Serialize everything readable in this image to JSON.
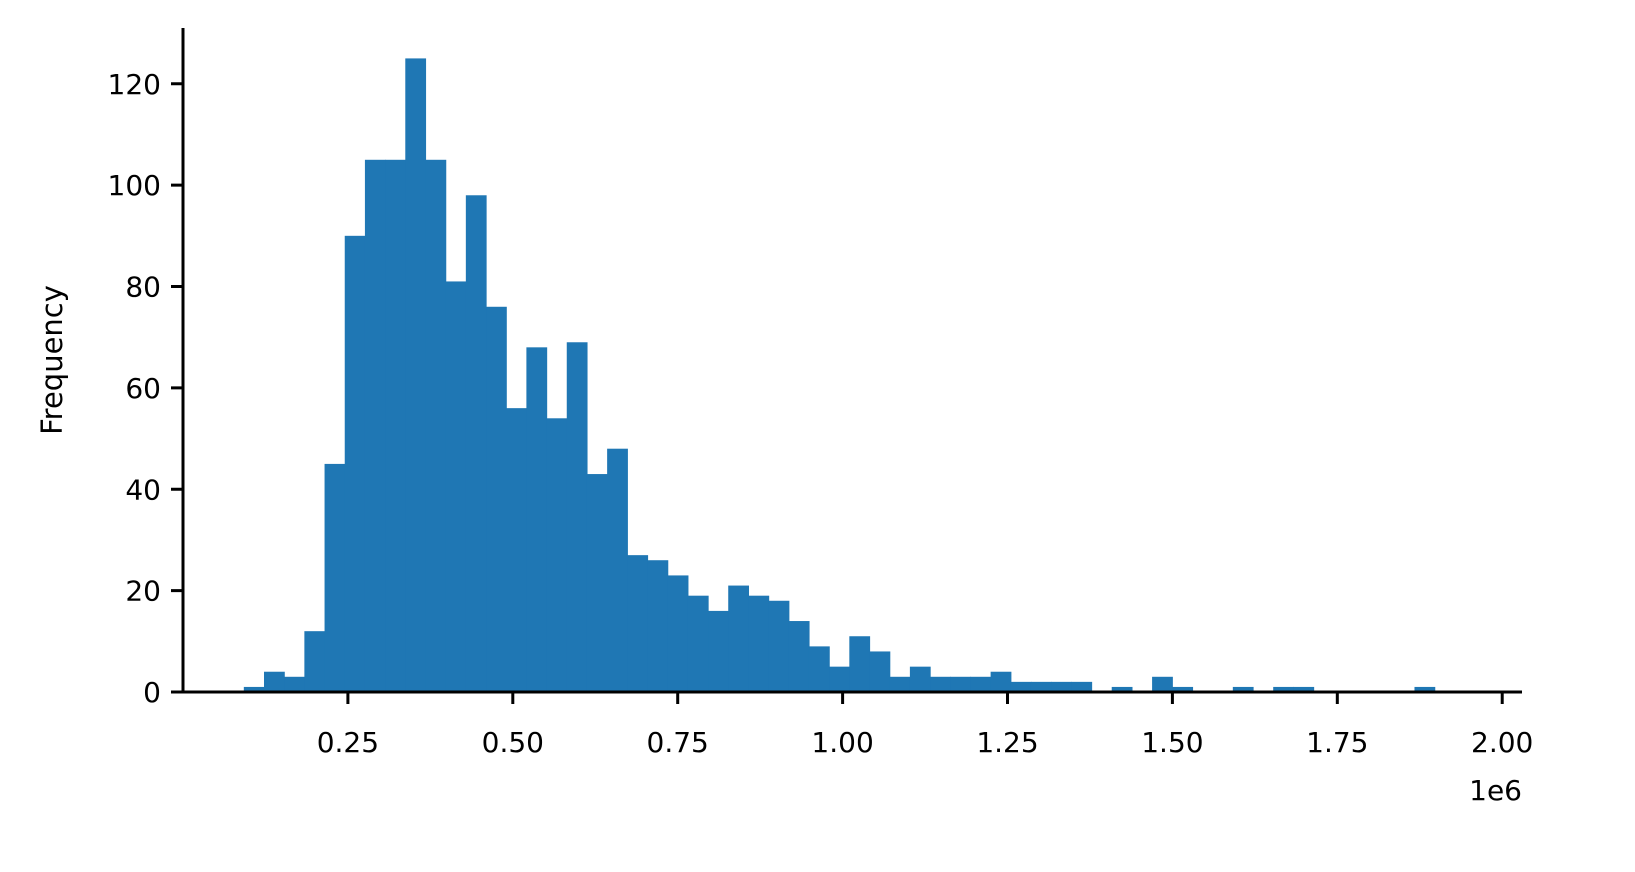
{
  "chart_data": {
    "type": "histogram",
    "title": "",
    "xlabel": "",
    "ylabel": "Frequency",
    "x_offset_label": "1e6",
    "xlim": [
      0.0,
      2.03
    ],
    "ylim": [
      0,
      131
    ],
    "x_ticks": [
      {
        "value": 0.25,
        "label": "0.25"
      },
      {
        "value": 0.5,
        "label": "0.50"
      },
      {
        "value": 0.75,
        "label": "0.75"
      },
      {
        "value": 1.0,
        "label": "1.00"
      },
      {
        "value": 1.25,
        "label": "1.25"
      },
      {
        "value": 1.5,
        "label": "1.50"
      },
      {
        "value": 1.75,
        "label": "1.75"
      },
      {
        "value": 2.0,
        "label": "2.00"
      }
    ],
    "y_ticks": [
      {
        "value": 0,
        "label": "0"
      },
      {
        "value": 20,
        "label": "20"
      },
      {
        "value": 40,
        "label": "40"
      },
      {
        "value": 60,
        "label": "60"
      },
      {
        "value": 80,
        "label": "80"
      },
      {
        "value": 100,
        "label": "100"
      },
      {
        "value": 120,
        "label": "120"
      }
    ],
    "bin_start": 0.0922,
    "bin_width": 0.0306,
    "counts": [
      1,
      4,
      3,
      12,
      45,
      90,
      105,
      105,
      125,
      105,
      81,
      98,
      76,
      56,
      68,
      54,
      69,
      43,
      48,
      27,
      26,
      23,
      19,
      16,
      21,
      19,
      18,
      14,
      9,
      5,
      11,
      8,
      3,
      5,
      3,
      3,
      3,
      4,
      2,
      2,
      2,
      2,
      0,
      1,
      0,
      3,
      1,
      0,
      0,
      1,
      0,
      1,
      1,
      0,
      0,
      0,
      0,
      0,
      1
    ],
    "bar_color": "#1f77b4",
    "grid": false,
    "legend": "none"
  }
}
